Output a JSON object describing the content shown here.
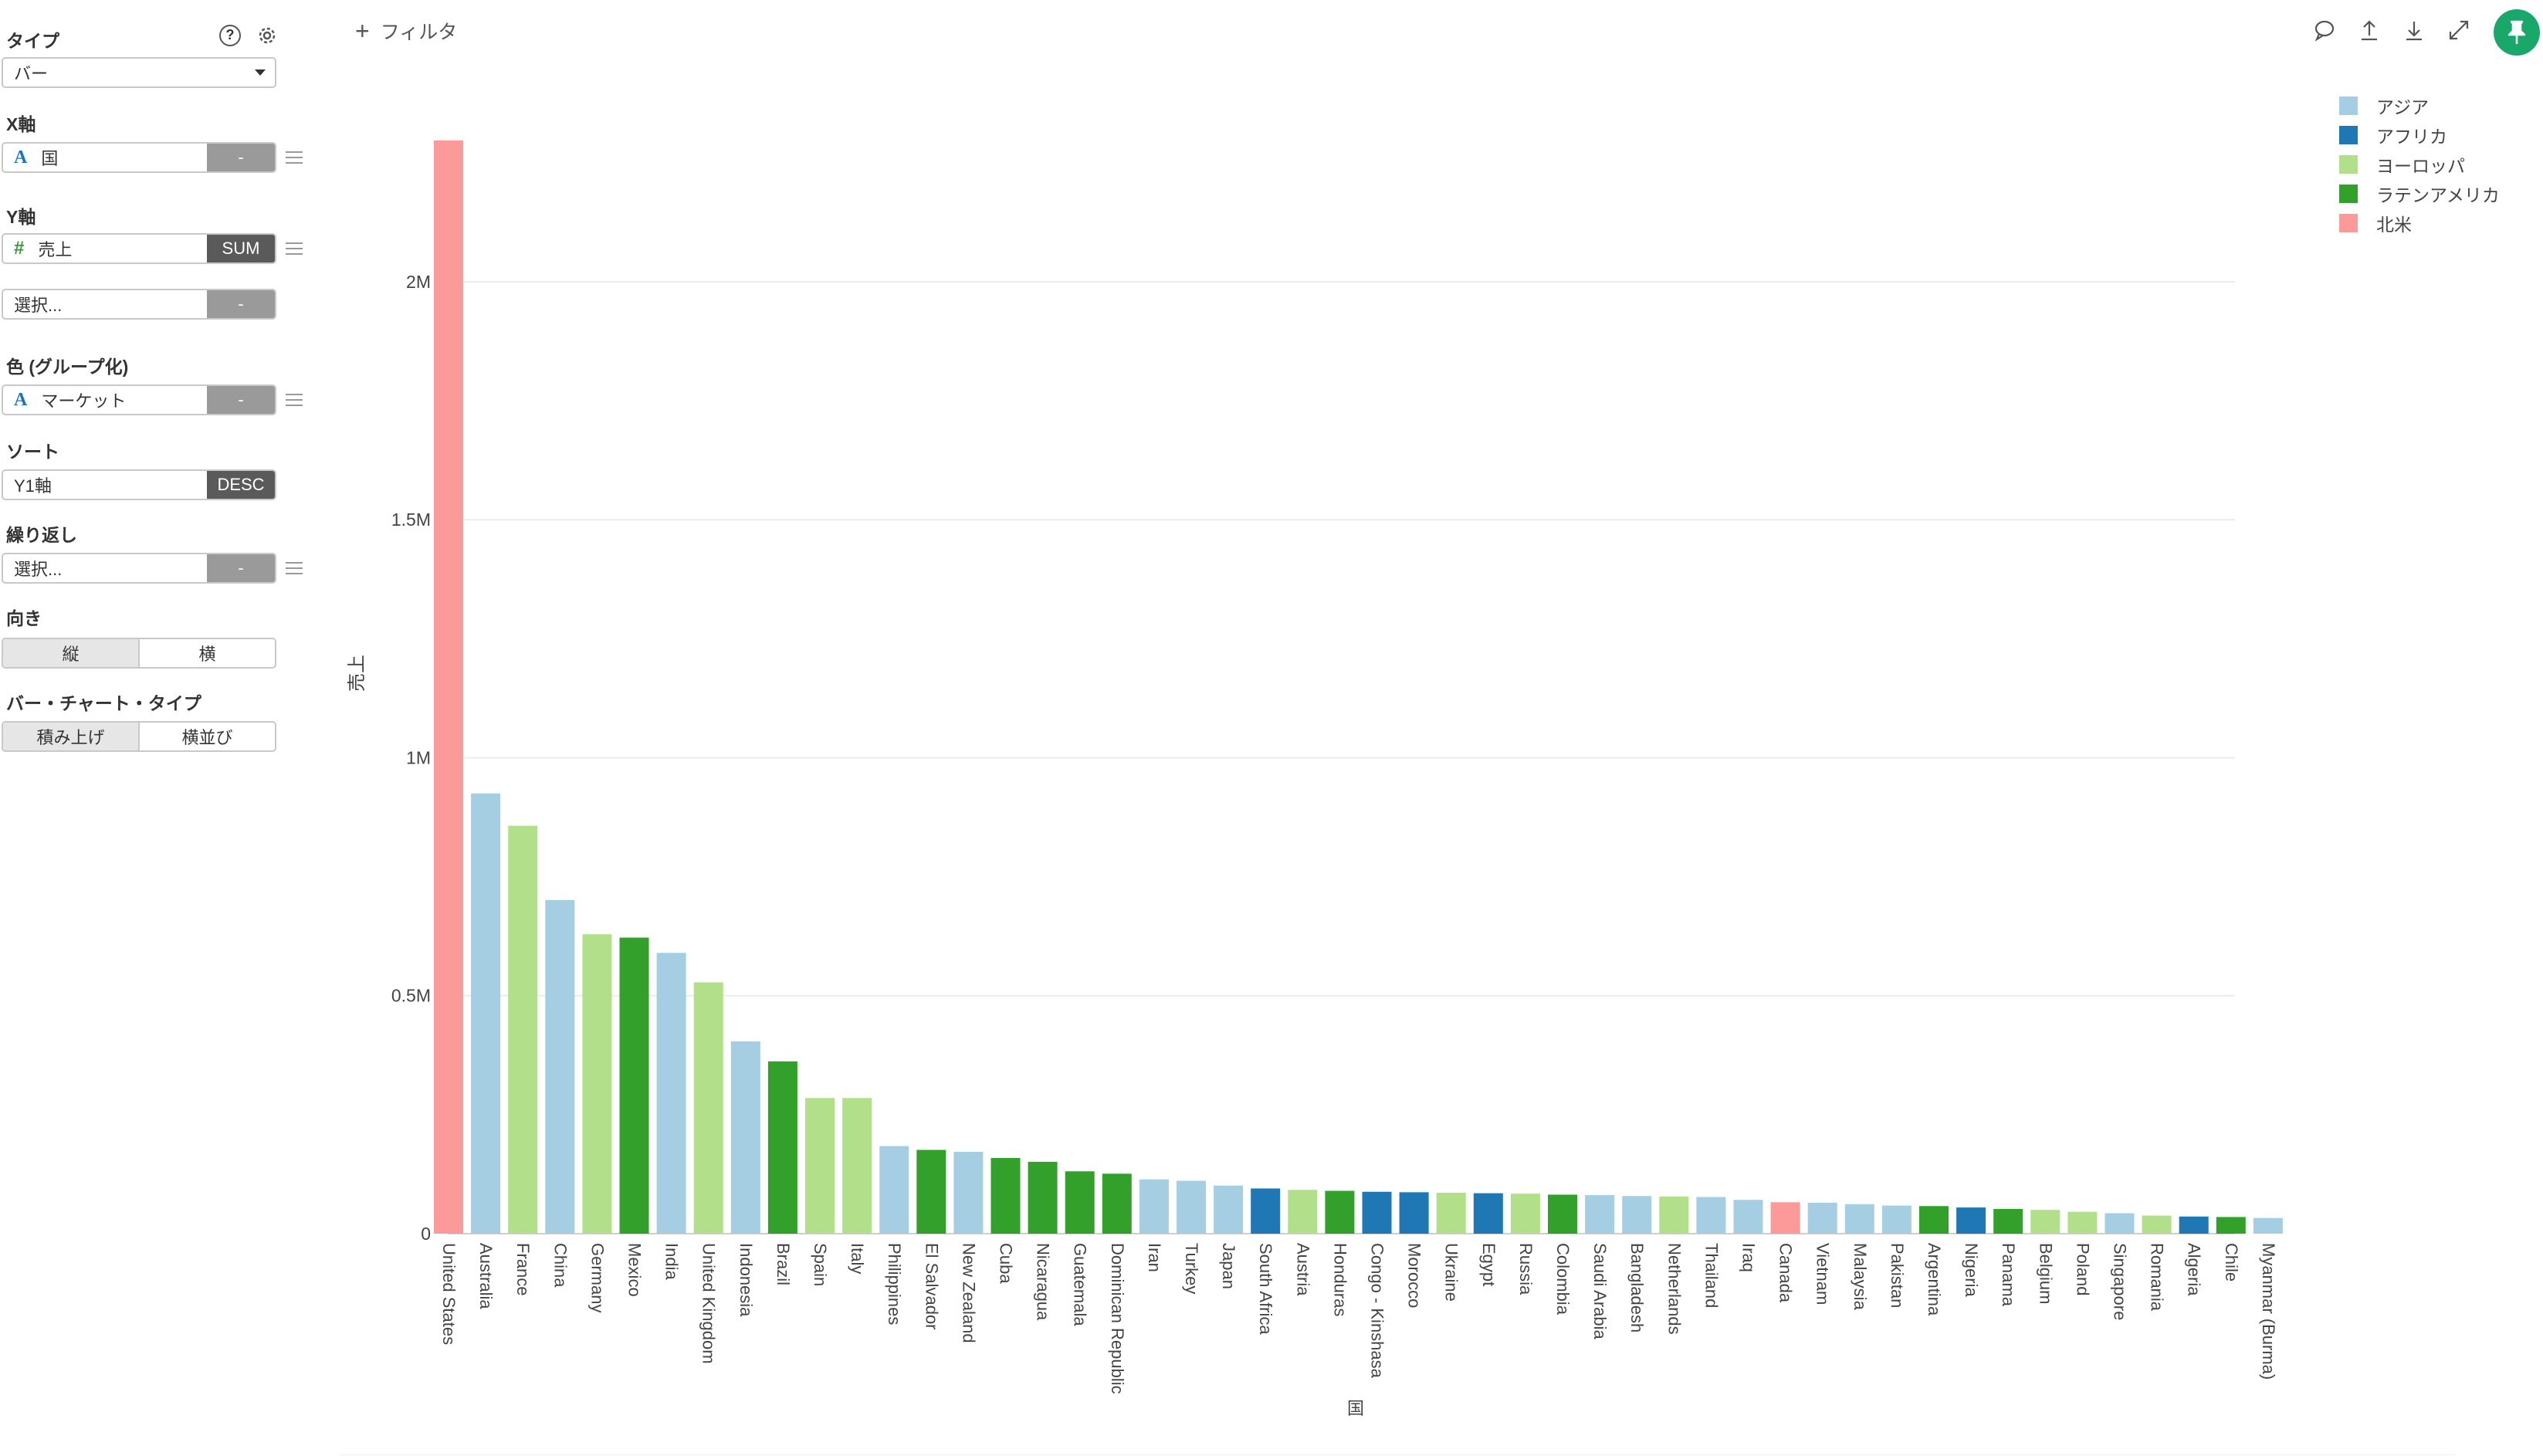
{
  "panel": {
    "type": {
      "label": "タイプ",
      "value": "バー"
    },
    "x_axis": {
      "label": "X軸",
      "field": "国",
      "agg": "-"
    },
    "y_axis": {
      "label": "Y軸",
      "field": "売上",
      "agg": "SUM",
      "extra_placeholder": "選択...",
      "extra_agg": "-"
    },
    "color": {
      "label": "色 (グループ化)",
      "field": "マーケット",
      "agg": "-"
    },
    "sort": {
      "label": "ソート",
      "field": "Y1軸",
      "order": "DESC"
    },
    "repeat": {
      "label": "繰り返し",
      "placeholder": "選択...",
      "agg": "-"
    },
    "orientation": {
      "label": "向き",
      "options": [
        "縦",
        "横"
      ]
    },
    "bar_chart_type": {
      "label": "バー・チャート・タイプ",
      "options": [
        "積み上げ",
        "横並び"
      ]
    }
  },
  "toolbar": {
    "filter_label": "フィルタ"
  },
  "colors": {
    "アジア": "#a6cee3",
    "アフリカ": "#1f78b4",
    "ヨーロッパ": "#b2df8a",
    "ラテンアメリカ": "#33a02c",
    "北米": "#fb9a99",
    "pin": "#1aa86a"
  },
  "chart_data": {
    "type": "bar",
    "xlabel": "国",
    "ylabel": "売上",
    "ylim": [
      0,
      2300000
    ],
    "yticks": [
      0,
      500000,
      1000000,
      1500000,
      2000000
    ],
    "ytick_labels": [
      "0",
      "0.5M",
      "1M",
      "1.5M",
      "2M"
    ],
    "legend_position": "top-right",
    "grid": true,
    "legend": [
      "アジア",
      "アフリカ",
      "ヨーロッパ",
      "ラテンアメリカ",
      "北米"
    ],
    "categories": [
      "United States",
      "Australia",
      "France",
      "China",
      "Germany",
      "Mexico",
      "India",
      "United Kingdom",
      "Indonesia",
      "Brazil",
      "Spain",
      "Italy",
      "Philippines",
      "El Salvador",
      "New Zealand",
      "Cuba",
      "Nicaragua",
      "Guatemala",
      "Dominican Republic",
      "Iran",
      "Turkey",
      "Japan",
      "South Africa",
      "Austria",
      "Honduras",
      "Congo - Kinshasa",
      "Morocco",
      "Ukraine",
      "Egypt",
      "Russia",
      "Colombia",
      "Saudi Arabia",
      "Bangladesh",
      "Netherlands",
      "Thailand",
      "Iraq",
      "Canada",
      "Vietnam",
      "Malaysia",
      "Pakistan",
      "Argentina",
      "Nigeria",
      "Panama",
      "Belgium",
      "Poland",
      "Singapore",
      "Romania",
      "Algeria",
      "Chile",
      "Myanmar (Burma)"
    ],
    "markets": [
      "北米",
      "アジア",
      "ヨーロッパ",
      "アジア",
      "ヨーロッパ",
      "ラテンアメリカ",
      "アジア",
      "ヨーロッパ",
      "アジア",
      "ラテンアメリカ",
      "ヨーロッパ",
      "ヨーロッパ",
      "アジア",
      "ラテンアメリカ",
      "アジア",
      "ラテンアメリカ",
      "ラテンアメリカ",
      "ラテンアメリカ",
      "ラテンアメリカ",
      "アジア",
      "アジア",
      "アジア",
      "アフリカ",
      "ヨーロッパ",
      "ラテンアメリカ",
      "アフリカ",
      "アフリカ",
      "ヨーロッパ",
      "アフリカ",
      "ヨーロッパ",
      "ラテンアメリカ",
      "アジア",
      "アジア",
      "ヨーロッパ",
      "アジア",
      "アジア",
      "北米",
      "アジア",
      "アジア",
      "アジア",
      "ラテンアメリカ",
      "アフリカ",
      "ラテンアメリカ",
      "ヨーロッパ",
      "ヨーロッパ",
      "アジア",
      "ヨーロッパ",
      "アフリカ",
      "ラテンアメリカ",
      "アジア"
    ],
    "values": [
      2297000,
      925000,
      857000,
      701000,
      629000,
      622000,
      590000,
      528000,
      404000,
      362000,
      285000,
      285000,
      184000,
      176000,
      172000,
      159000,
      151000,
      131000,
      126000,
      114000,
      111000,
      101000,
      95000,
      92000,
      90000,
      88000,
      87000,
      86000,
      85000,
      84000,
      82000,
      81000,
      79000,
      78000,
      77000,
      71000,
      66000,
      65000,
      62000,
      59000,
      58000,
      55000,
      52000,
      50000,
      46000,
      43000,
      38000,
      36000,
      35000,
      33000
    ]
  }
}
